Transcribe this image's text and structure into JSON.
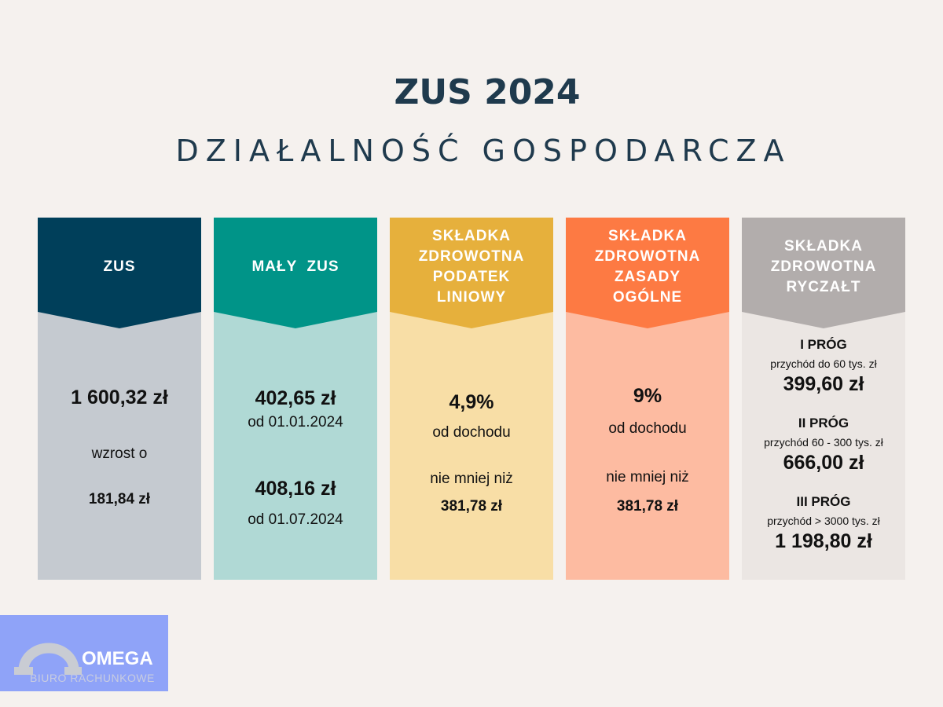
{
  "header": {
    "title": "ZUS 2024",
    "subtitle": "DZIAŁALNOŚĆ GOSPODARCZA"
  },
  "columns": [
    {
      "title": [
        "ZUS"
      ],
      "amount": "1 600,32 zł",
      "increase_label": "wzrost o",
      "increase_value": "181,84 zł"
    },
    {
      "title": [
        "MAŁY  ZUS"
      ],
      "amount_1": "402,65 zł",
      "date_1": "od 01.01.2024",
      "amount_2": "408,16 zł",
      "date_2": "od 01.07.2024"
    },
    {
      "title": [
        "SKŁADKA",
        "ZDROWOTNA",
        "PODATEK",
        "LINIOWY"
      ],
      "rate": "4,9%",
      "basis": "od dochodu",
      "min_label": "nie mniej niż",
      "min_value": "381,78 zł"
    },
    {
      "title": [
        "SKŁADKA",
        "ZDROWOTNA",
        "ZASADY",
        "OGÓLNE"
      ],
      "rate": "9%",
      "basis": "od dochodu",
      "min_label": "nie mniej niż",
      "min_value": "381,78 zł"
    },
    {
      "title": [
        "SKŁADKA",
        "ZDROWOTNA",
        "RYCZAŁT"
      ],
      "thresholds": [
        {
          "name": "I PRÓG",
          "range": "przychód do 60 tys. zł",
          "value": "399,60 zł"
        },
        {
          "name": "II PRÓG",
          "range": "przychód  60 - 300 tys. zł",
          "value": "666,00 zł"
        },
        {
          "name": "III PRÓG",
          "range": "przychód > 3000 tys. zł",
          "value": "1 198,80 zł"
        }
      ]
    }
  ],
  "logo": {
    "name": "OMEGA",
    "tagline": "BIURO RACHUNKOWE",
    "background": "#8fa3f8"
  }
}
